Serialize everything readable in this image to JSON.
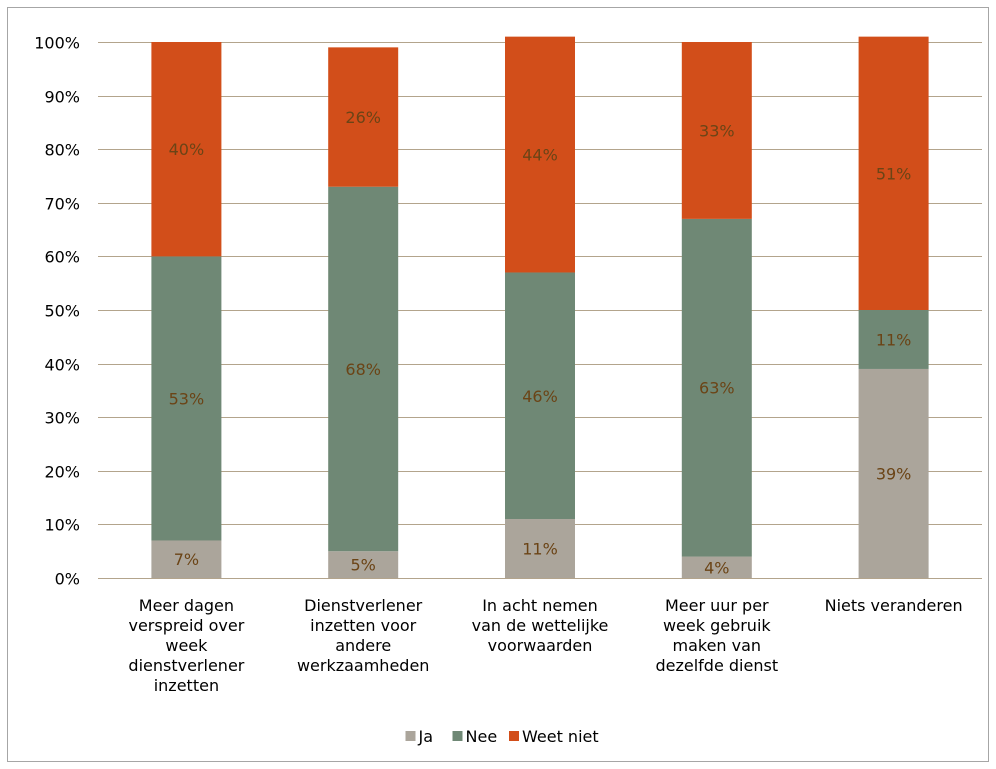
{
  "chart_data": {
    "type": "bar",
    "stacked": true,
    "percent": true,
    "categories": [
      [
        "Meer dagen",
        "verspreid over",
        "week",
        "dienstverlener",
        "inzetten"
      ],
      [
        "Dienstverlener",
        "inzetten voor",
        "andere",
        "werkzaamheden"
      ],
      [
        "In acht nemen",
        "van de wettelijke",
        "voorwaarden"
      ],
      [
        "Meer uur per",
        "week gebruik",
        "maken van",
        "dezelfde dienst"
      ],
      [
        "Niets veranderen"
      ]
    ],
    "series": [
      {
        "name": "Ja",
        "color": "#aba59b",
        "values": [
          7,
          5,
          11,
          4,
          39
        ],
        "labels": [
          "7%",
          "5%",
          "11%",
          "4%",
          "39%"
        ]
      },
      {
        "name": "Nee",
        "color": "#6f8875",
        "values": [
          53,
          68,
          46,
          63,
          11
        ],
        "labels": [
          "53%",
          "68%",
          "46%",
          "63%",
          "11%"
        ]
      },
      {
        "name": "Weet niet",
        "color": "#d24e1a",
        "values": [
          40,
          26,
          44,
          33,
          51
        ],
        "labels": [
          "40%",
          "26%",
          "44%",
          "33%",
          "51%"
        ]
      }
    ],
    "y_ticks": [
      "0%",
      "10%",
      "20%",
      "30%",
      "40%",
      "50%",
      "60%",
      "70%",
      "80%",
      "90%",
      "100%"
    ],
    "ylim": [
      0,
      100
    ],
    "grid": true,
    "legend_position": "bottom"
  }
}
